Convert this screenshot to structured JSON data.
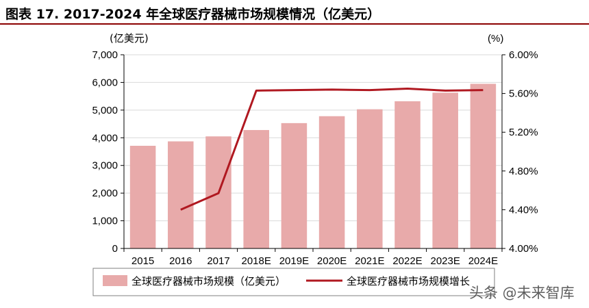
{
  "header": {
    "title": "图表 17. 2017-2024 年全球医疗器械市场规模情况（亿美元）"
  },
  "watermark": "头条 @未来智库",
  "chart_data": {
    "type": "bar",
    "categories": [
      "2015",
      "2016",
      "2017",
      "2018E",
      "2019E",
      "2020E",
      "2021E",
      "2022E",
      "2023E",
      "2024E"
    ],
    "left_unit": "(亿美元)",
    "right_unit": "(%)",
    "ylim_left": [
      0,
      7000
    ],
    "ylim_right": [
      4.0,
      6.0
    ],
    "left_ticks": [
      "7,000",
      "6,000",
      "5,000",
      "4,000",
      "3,000",
      "2,000",
      "1,000",
      "0"
    ],
    "right_ticks": [
      "6.00%",
      "5.60%",
      "5.20%",
      "4.80%",
      "4.40%",
      "4.00%"
    ],
    "series": [
      {
        "name": "全球医疗器械市场规模（亿美元）",
        "type": "bar",
        "axis": "left",
        "color": "#e8aaaa",
        "values": [
          3710,
          3870,
          4050,
          4280,
          4530,
          4780,
          5030,
          5320,
          5630,
          5950
        ]
      },
      {
        "name": "全球医疗器械市场规模增长",
        "type": "line",
        "axis": "right",
        "color": "#b01820",
        "values": [
          null,
          4.4,
          4.57,
          5.63,
          5.635,
          5.64,
          5.635,
          5.65,
          5.63,
          5.635
        ]
      }
    ],
    "legend_position": "bottom"
  }
}
